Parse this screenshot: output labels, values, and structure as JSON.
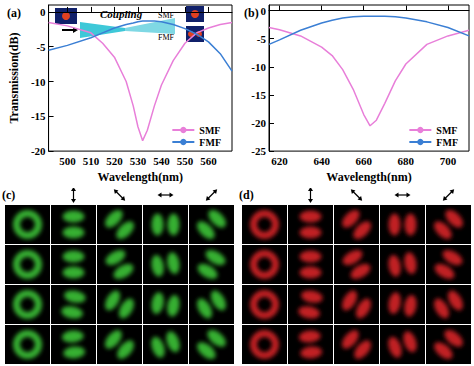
{
  "chart_data": [
    {
      "type": "line",
      "title": "(a)",
      "x_label": "Wavelength(nm)",
      "y_label": "Transmission(dB)",
      "xlim": [
        492,
        570
      ],
      "xticks": [
        500,
        510,
        520,
        530,
        540,
        550,
        560
      ],
      "ylim": [
        -20,
        1
      ],
      "yticks": [
        -20,
        -15,
        -10,
        -5,
        0
      ],
      "legend": "lower right",
      "grid": false,
      "annotations": [
        "Coupling",
        "SMF",
        "FMF"
      ],
      "x": [
        492,
        500,
        510,
        515,
        520,
        525,
        528,
        530,
        532,
        534,
        537,
        540,
        545,
        550,
        555,
        560,
        565,
        570
      ],
      "series": [
        {
          "name": "SMF",
          "color": "#e87fd9",
          "values": [
            -1.5,
            -2,
            -3,
            -4.5,
            -6.5,
            -10,
            -13.5,
            -16.5,
            -18.5,
            -17,
            -13.5,
            -10.5,
            -7,
            -4.5,
            -3,
            -2.3,
            -1.8,
            -1.5
          ]
        },
        {
          "name": "FMF",
          "color": "#3b7fd4",
          "values": [
            -5.5,
            -4.8,
            -3.7,
            -3,
            -2.3,
            -1.8,
            -1.6,
            -1.4,
            -1.3,
            -1.3,
            -1.3,
            -1.4,
            -1.8,
            -2.4,
            -3.2,
            -4.3,
            -6,
            -8.5
          ]
        }
      ]
    },
    {
      "type": "line",
      "title": "(b)",
      "x_label": "Wavelength(nm)",
      "xlim": [
        615,
        710
      ],
      "xticks": [
        620,
        640,
        660,
        680,
        700
      ],
      "ylim": [
        -25,
        1
      ],
      "yticks": [
        -25,
        -20,
        -15,
        -10,
        -5,
        0
      ],
      "legend": "lower right",
      "grid": false,
      "x": [
        615,
        620,
        630,
        640,
        645,
        650,
        655,
        660,
        663,
        666,
        670,
        675,
        680,
        690,
        700,
        710
      ],
      "series": [
        {
          "name": "SMF",
          "color": "#e87fd9",
          "values": [
            -3,
            -3.4,
            -4.5,
            -6.5,
            -8,
            -10.5,
            -14,
            -18.5,
            -20.5,
            -19.5,
            -16.5,
            -12.5,
            -9.5,
            -6,
            -4.5,
            -3.5
          ]
        },
        {
          "name": "FMF",
          "color": "#3b7fd4",
          "values": [
            -6,
            -5.2,
            -3.5,
            -2.2,
            -1.7,
            -1.3,
            -1.1,
            -1,
            -1,
            -1,
            -1,
            -1.1,
            -1.3,
            -2,
            -3,
            -4.5
          ]
        }
      ]
    }
  ],
  "panels": [
    {
      "label": "(c)",
      "color": "#3fcf3a"
    },
    {
      "label": "(d)",
      "color": "#e3262c"
    }
  ]
}
